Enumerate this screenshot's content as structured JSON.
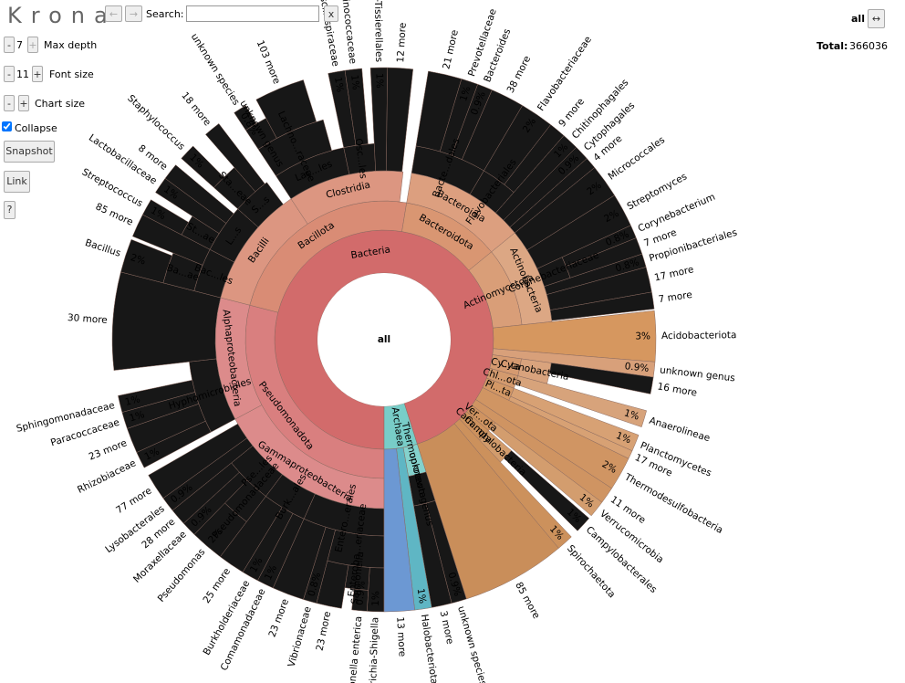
{
  "toolbar": {
    "logo": "Krona",
    "back": "←",
    "forward": "→",
    "search_label": "Search:",
    "clear": "x",
    "minus": "-",
    "plus": "+",
    "max_depth": 7,
    "max_depth_label": "Max depth",
    "font_size": 11,
    "font_size_label": "Font size",
    "chart_size_label": "Chart size",
    "collapse": "Collapse",
    "snapshot": "Snapshot",
    "link": "Link",
    "help": "?"
  },
  "focus": {
    "name": "all",
    "expand": "↔",
    "total_label": "Total:",
    "total": 366036
  },
  "chart_data": {
    "type": "sunburst",
    "children": [
      {
        "name": "Bacteria",
        "value": 95.1,
        "color": "#d26b6b",
        "children": [
          {
            "name": "Pseudomonadota",
            "value": 29,
            "color": "#d97f7f",
            "children": [
              {
                "name": "Gammaproteobacteria",
                "value": 17.2,
                "children": [
                  {
                    "name": "Entero...erales",
                    "value": 6.7,
                    "children": [
                      {
                        "name": "Enteroba...eriaceae",
                        "value": 4,
                        "children": [
                          {
                            "name": "Escherichia-Shigella",
                            "value": 1,
                            "value_label": "1%"
                          },
                          {
                            "name": "Salmonella",
                            "value": 1.5,
                            "children": [
                              {
                                "name": "Salmonella enterica",
                                "value": 0.9,
                                "value_label": "0.9%"
                              }
                            ]
                          },
                          {
                            "name": "23 more",
                            "value": 1.5
                          }
                        ]
                      },
                      {
                        "name": "Vibrionaceae",
                        "value": 0.8,
                        "value_label": "0.8%"
                      },
                      {
                        "name": "23 more",
                        "value": 1.9
                      }
                    ]
                  },
                  {
                    "name": "Burk...ales",
                    "value": 3.6,
                    "children": [
                      {
                        "name": "Comamonadaceae",
                        "value": 1,
                        "value_label": "1%"
                      },
                      {
                        "name": "Burkholderiaceae",
                        "value": 1,
                        "value_label": "1%"
                      },
                      {
                        "name": "25 more",
                        "value": 1.6
                      }
                    ]
                  },
                  {
                    "name": "Pse...les",
                    "value": 3.9,
                    "children": [
                      {
                        "name": "Pseudomonadaceae",
                        "value": 2,
                        "children": [
                          {
                            "name": "Pseudomonas",
                            "value": 2,
                            "value_label": "2%"
                          }
                        ]
                      },
                      {
                        "name": "Moraxellaceae",
                        "value": 0.9,
                        "value_label": "0.9%"
                      },
                      {
                        "name": "28 more",
                        "value": 1
                      }
                    ]
                  },
                  {
                    "name": "Lysobacterales",
                    "value": 0.9,
                    "value_label": "0.9%"
                  },
                  {
                    "name": "77 more",
                    "value": 1.6
                  }
                ]
              },
              {
                "name": "Alphaproteobacteria",
                "value": 11.8,
                "children": [
                  {
                    "name": "Hyphomicrobiales",
                    "value": 6,
                    "children": [
                      {
                        "name": "Rhizobiaceae",
                        "value": 1,
                        "value_label": "1%"
                      },
                      {
                        "name": "23 more",
                        "value": 1.5
                      },
                      {
                        "name": "Paracoccaceae",
                        "value": 1,
                        "value_label": "1%"
                      },
                      {
                        "name": "Sphingomonadaceae",
                        "value": 1,
                        "value_label": "1%"
                      }
                    ]
                  },
                  {
                    "name": "30 more",
                    "value": 5.8
                  }
                ]
              }
            ]
          },
          {
            "name": "Bacillota",
            "value": 23.6,
            "color": "#d98c75",
            "children": [
              {
                "name": "Bacilli",
                "value": 11.7,
                "children": [
                  {
                    "name": "Bac...les",
                    "value": 3.6,
                    "children": [
                      {
                        "name": "Ba...ae",
                        "value": 2.2,
                        "children": [
                          {
                            "name": "Bacillus",
                            "value": 2,
                            "value_label": "2%"
                          }
                        ]
                      },
                      {
                        "name": "85 more",
                        "value": 1.4
                      }
                    ]
                  },
                  {
                    "name": "L...s",
                    "value": 4,
                    "children": [
                      {
                        "name": "St...ae",
                        "value": 1.5,
                        "children": [
                          {
                            "name": "Streptococcus",
                            "value": 1,
                            "value_label": "1%"
                          }
                        ]
                      },
                      {
                        "name": "Lactobacillaceae",
                        "value": 1,
                        "value_label": "1%"
                      },
                      {
                        "name": "8 more",
                        "value": 1
                      }
                    ]
                  },
                  {
                    "name": "S...s",
                    "value": 3.2,
                    "children": [
                      {
                        "name": "Sta...eae",
                        "value": 2,
                        "children": [
                          {
                            "name": "Staphylococcus",
                            "value": 1,
                            "value_label": "1%"
                          }
                        ]
                      },
                      {
                        "name": "18 more",
                        "value": 1
                      }
                    ]
                  }
                ]
              },
              {
                "name": "Clostridia",
                "value": 11.1,
                "children": [
                  {
                    "name": "Lac...les",
                    "value": 6,
                    "children": [
                      {
                        "name": "Lachno...raceae",
                        "value": 5,
                        "children": [
                          {
                            "name": "unknown genus",
                            "value": 1.5,
                            "children": [
                              {
                                "name": "unknown species",
                                "value": 0.8,
                                "value_label": "0.8%"
                              }
                            ]
                          },
                          {
                            "name": "103 more",
                            "value": 3
                          }
                        ]
                      }
                    ]
                  },
                  {
                    "name": "Osc...les",
                    "value": 2.5,
                    "children": [
                      {
                        "name": "Oscillospiraceae",
                        "value": 1,
                        "value_label": "1%"
                      },
                      {
                        "name": "Ruminococcaceae",
                        "value": 1,
                        "value_label": "1%"
                      }
                    ]
                  },
                  {
                    "name": "Peptostreptococcales-Tissierellales",
                    "value": 1,
                    "value_label": "1%"
                  },
                  {
                    "name": "12 more",
                    "value": 1.5
                  }
                ]
              }
            ]
          },
          {
            "name": "Bacteroidota",
            "value": 11.5,
            "color": "#d99672",
            "children": [
              {
                "name": "Bacteroidia",
                "value": 11.5,
                "children": [
                  {
                    "name": "Bacte...dales",
                    "value": 5.9,
                    "children": [
                      {
                        "name": "21 more",
                        "value": 2
                      },
                      {
                        "name": "Prevotellaceae",
                        "value": 1,
                        "value_label": "1%"
                      },
                      {
                        "name": "Bacteroides",
                        "value": 0.9,
                        "value_label": "0.9%"
                      },
                      {
                        "name": "38 more",
                        "value": 2
                      }
                    ]
                  },
                  {
                    "name": "Flavobacteriales",
                    "value": 3,
                    "children": [
                      {
                        "name": "Flavobacteriaceae",
                        "value": 2,
                        "value_label": "2%"
                      },
                      {
                        "name": "9 more",
                        "value": 1
                      }
                    ]
                  },
                  {
                    "name": "Chitinophagales",
                    "value": 1,
                    "value_label": "1%"
                  },
                  {
                    "name": "Cytophagales",
                    "value": 0.9,
                    "value_label": "0.9%"
                  },
                  {
                    "name": "4 more",
                    "value": 0.7
                  }
                ]
              }
            ]
          },
          {
            "name": "Actinomycetota",
            "value": 9.2,
            "color": "#d99e78",
            "children": [
              {
                "name": "Actinobacteria",
                "value": 9.2,
                "children": [
                  {
                    "name": "Micrococcales",
                    "value": 2,
                    "value_label": "2%"
                  },
                  {
                    "name": "Streptomyces",
                    "value": 2,
                    "value_label": "2%"
                  },
                  {
                    "name": "Corynebacteriaceae",
                    "value": 1.8,
                    "children": [
                      {
                        "name": "Corynebacterium",
                        "value": 0.8,
                        "value_label": "0.8%"
                      },
                      {
                        "name": "7 more",
                        "value": 1
                      }
                    ]
                  },
                  {
                    "name": "Propionibacteriales",
                    "value": 0.8,
                    "value_label": "0.8%"
                  },
                  {
                    "name": "17 more",
                    "value": 1.5
                  },
                  {
                    "name": "7 more",
                    "value": 1
                  }
                ]
              }
            ]
          },
          {
            "name": "Acidobacteriota",
            "value": 3,
            "value_label": "3%",
            "color": "#d6975f"
          },
          {
            "name": "unknown genus",
            "value": 0.9,
            "value_label": "0.9%",
            "color": "#d8a07a"
          },
          {
            "name": "Cy...ta",
            "value": 2,
            "color": "#d59a70",
            "children": [
              {
                "name": "Cyanobacteria",
                "value": 2,
                "children": [
                  {
                    "name": "16 more",
                    "value": 1
                  }
                ]
              }
            ]
          },
          {
            "name": "Chl...ota",
            "value": 1.5,
            "color": "#d39a6e",
            "children": [
              {
                "name": "Anaerolineae",
                "value": 1,
                "value_label": "1%"
              }
            ]
          },
          {
            "name": "Pl...ta",
            "value": 1.5,
            "color": "#d39866",
            "children": [
              {
                "name": "Planctomycetes",
                "value": 1,
                "value_label": "1%"
              },
              {
                "name": "17 more",
                "value": 0.5
              }
            ]
          },
          {
            "name": "Thermodesulfobacteria",
            "value": 2,
            "value_label": "2%",
            "color": "#d09563"
          },
          {
            "name": "11 more",
            "value": 1,
            "color": "#cf9462"
          },
          {
            "name": "Ver...ota",
            "value": 1.2,
            "color": "#cf9360",
            "children": [
              {
                "name": "Verrucomicrobia",
                "value": 1,
                "value_label": "1%"
              }
            ]
          },
          {
            "name": "Cam...ota",
            "value": 1.5,
            "color": "#cd925e",
            "children": [
              {
                "name": "Campylobacteria",
                "value": 1.5,
                "children": [
                  {
                    "name": "Campylobacterales",
                    "value": 1,
                    "value_label": "1%"
                  }
                ]
              }
            ]
          },
          {
            "name": "Spirochaetota",
            "value": 1,
            "value_label": "1%",
            "color": "#cc915c"
          },
          {
            "name": "85 more",
            "value": 6.2,
            "color": "#c98e5a"
          }
        ]
      },
      {
        "name": "Archaea",
        "value": 4.9,
        "color": "#78cdc8",
        "children": [
          {
            "name": "Thermoproteota",
            "value": 2.1,
            "children": [
              {
                "name": "unknown genus",
                "value": 2.1,
                "children": [
                  {
                    "name": "unknown species",
                    "value": 0.9,
                    "value_label": "0.9%"
                  },
                  {
                    "name": "3 more",
                    "value": 1.2
                  }
                ]
              }
            ]
          },
          {
            "name": "Halobacteriota",
            "value": 1,
            "value_label": "1%",
            "color": "#5fb6c4"
          },
          {
            "name": "13 more",
            "value": 1.8,
            "color": "#6c98d3"
          }
        ]
      }
    ]
  }
}
